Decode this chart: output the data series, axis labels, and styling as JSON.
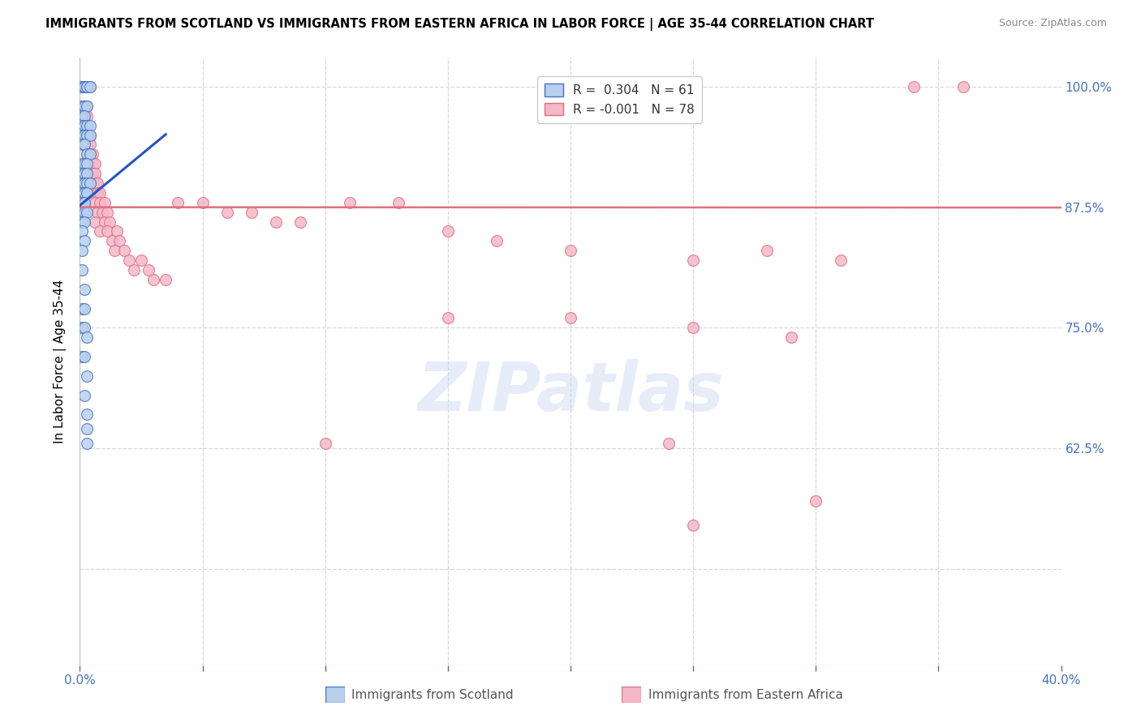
{
  "title": "IMMIGRANTS FROM SCOTLAND VS IMMIGRANTS FROM EASTERN AFRICA IN LABOR FORCE | AGE 35-44 CORRELATION CHART",
  "source": "Source: ZipAtlas.com",
  "ylabel": "In Labor Force | Age 35-44",
  "xlim": [
    0.0,
    0.4
  ],
  "ylim": [
    0.4,
    1.03
  ],
  "hline_y": 0.875,
  "hline_color": "#e07080",
  "scotland_fill": "#b8d0ee",
  "scotland_edge": "#4472c4",
  "ea_fill": "#f4b8c8",
  "ea_edge": "#e07080",
  "scotland_line_color": "#2255cc",
  "watermark": "ZIPatlas",
  "grid_color": "#d8d8d8",
  "tick_color": "#4472c4",
  "scotland_R": 0.304,
  "scotland_N": 61,
  "ea_R": -0.001,
  "ea_N": 78,
  "scotland_points": [
    [
      0.001,
      1.0
    ],
    [
      0.001,
      1.0
    ],
    [
      0.002,
      1.0
    ],
    [
      0.002,
      1.0
    ],
    [
      0.003,
      1.0
    ],
    [
      0.003,
      1.0
    ],
    [
      0.004,
      1.0
    ],
    [
      0.001,
      0.98
    ],
    [
      0.002,
      0.98
    ],
    [
      0.003,
      0.98
    ],
    [
      0.001,
      0.97
    ],
    [
      0.002,
      0.97
    ],
    [
      0.001,
      0.96
    ],
    [
      0.002,
      0.96
    ],
    [
      0.003,
      0.96
    ],
    [
      0.004,
      0.96
    ],
    [
      0.001,
      0.95
    ],
    [
      0.002,
      0.95
    ],
    [
      0.003,
      0.95
    ],
    [
      0.004,
      0.95
    ],
    [
      0.001,
      0.94
    ],
    [
      0.002,
      0.94
    ],
    [
      0.003,
      0.93
    ],
    [
      0.004,
      0.93
    ],
    [
      0.001,
      0.92
    ],
    [
      0.002,
      0.92
    ],
    [
      0.003,
      0.92
    ],
    [
      0.001,
      0.91
    ],
    [
      0.002,
      0.91
    ],
    [
      0.003,
      0.91
    ],
    [
      0.001,
      0.9
    ],
    [
      0.002,
      0.9
    ],
    [
      0.003,
      0.9
    ],
    [
      0.004,
      0.9
    ],
    [
      0.001,
      0.89
    ],
    [
      0.002,
      0.89
    ],
    [
      0.003,
      0.89
    ],
    [
      0.001,
      0.88
    ],
    [
      0.002,
      0.88
    ],
    [
      0.001,
      0.87
    ],
    [
      0.002,
      0.87
    ],
    [
      0.003,
      0.87
    ],
    [
      0.001,
      0.86
    ],
    [
      0.002,
      0.86
    ],
    [
      0.001,
      0.85
    ],
    [
      0.002,
      0.84
    ],
    [
      0.001,
      0.83
    ],
    [
      0.001,
      0.81
    ],
    [
      0.002,
      0.79
    ],
    [
      0.001,
      0.77
    ],
    [
      0.002,
      0.77
    ],
    [
      0.001,
      0.75
    ],
    [
      0.002,
      0.75
    ],
    [
      0.003,
      0.74
    ],
    [
      0.001,
      0.72
    ],
    [
      0.002,
      0.72
    ],
    [
      0.003,
      0.7
    ],
    [
      0.002,
      0.68
    ],
    [
      0.003,
      0.66
    ],
    [
      0.003,
      0.645
    ],
    [
      0.003,
      0.63
    ]
  ],
  "ea_points": [
    [
      0.001,
      1.0
    ],
    [
      0.002,
      1.0
    ],
    [
      0.003,
      1.0
    ],
    [
      0.004,
      1.0
    ],
    [
      0.001,
      0.98
    ],
    [
      0.002,
      0.98
    ],
    [
      0.003,
      0.98
    ],
    [
      0.001,
      0.97
    ],
    [
      0.002,
      0.97
    ],
    [
      0.003,
      0.97
    ],
    [
      0.001,
      0.96
    ],
    [
      0.002,
      0.96
    ],
    [
      0.003,
      0.96
    ],
    [
      0.002,
      0.95
    ],
    [
      0.003,
      0.95
    ],
    [
      0.004,
      0.95
    ],
    [
      0.002,
      0.94
    ],
    [
      0.003,
      0.94
    ],
    [
      0.004,
      0.94
    ],
    [
      0.003,
      0.93
    ],
    [
      0.004,
      0.93
    ],
    [
      0.005,
      0.93
    ],
    [
      0.004,
      0.92
    ],
    [
      0.005,
      0.92
    ],
    [
      0.006,
      0.92
    ],
    [
      0.003,
      0.91
    ],
    [
      0.005,
      0.91
    ],
    [
      0.006,
      0.91
    ],
    [
      0.004,
      0.9
    ],
    [
      0.006,
      0.9
    ],
    [
      0.007,
      0.9
    ],
    [
      0.005,
      0.89
    ],
    [
      0.007,
      0.89
    ],
    [
      0.008,
      0.89
    ],
    [
      0.006,
      0.88
    ],
    [
      0.008,
      0.88
    ],
    [
      0.01,
      0.88
    ],
    [
      0.007,
      0.87
    ],
    [
      0.009,
      0.87
    ],
    [
      0.011,
      0.87
    ],
    [
      0.006,
      0.86
    ],
    [
      0.01,
      0.86
    ],
    [
      0.012,
      0.86
    ],
    [
      0.008,
      0.85
    ],
    [
      0.011,
      0.85
    ],
    [
      0.015,
      0.85
    ],
    [
      0.013,
      0.84
    ],
    [
      0.016,
      0.84
    ],
    [
      0.014,
      0.83
    ],
    [
      0.018,
      0.83
    ],
    [
      0.02,
      0.82
    ],
    [
      0.025,
      0.82
    ],
    [
      0.022,
      0.81
    ],
    [
      0.028,
      0.81
    ],
    [
      0.03,
      0.8
    ],
    [
      0.035,
      0.8
    ],
    [
      0.04,
      0.88
    ],
    [
      0.05,
      0.88
    ],
    [
      0.06,
      0.87
    ],
    [
      0.07,
      0.87
    ],
    [
      0.08,
      0.86
    ],
    [
      0.09,
      0.86
    ],
    [
      0.11,
      0.88
    ],
    [
      0.13,
      0.88
    ],
    [
      0.15,
      0.85
    ],
    [
      0.17,
      0.84
    ],
    [
      0.2,
      0.83
    ],
    [
      0.25,
      0.82
    ],
    [
      0.28,
      0.83
    ],
    [
      0.31,
      0.82
    ],
    [
      0.34,
      1.0
    ],
    [
      0.36,
      1.0
    ],
    [
      0.15,
      0.76
    ],
    [
      0.2,
      0.76
    ],
    [
      0.25,
      0.75
    ],
    [
      0.29,
      0.74
    ],
    [
      0.1,
      0.63
    ],
    [
      0.24,
      0.63
    ],
    [
      0.3,
      0.57
    ],
    [
      0.25,
      0.545
    ]
  ]
}
